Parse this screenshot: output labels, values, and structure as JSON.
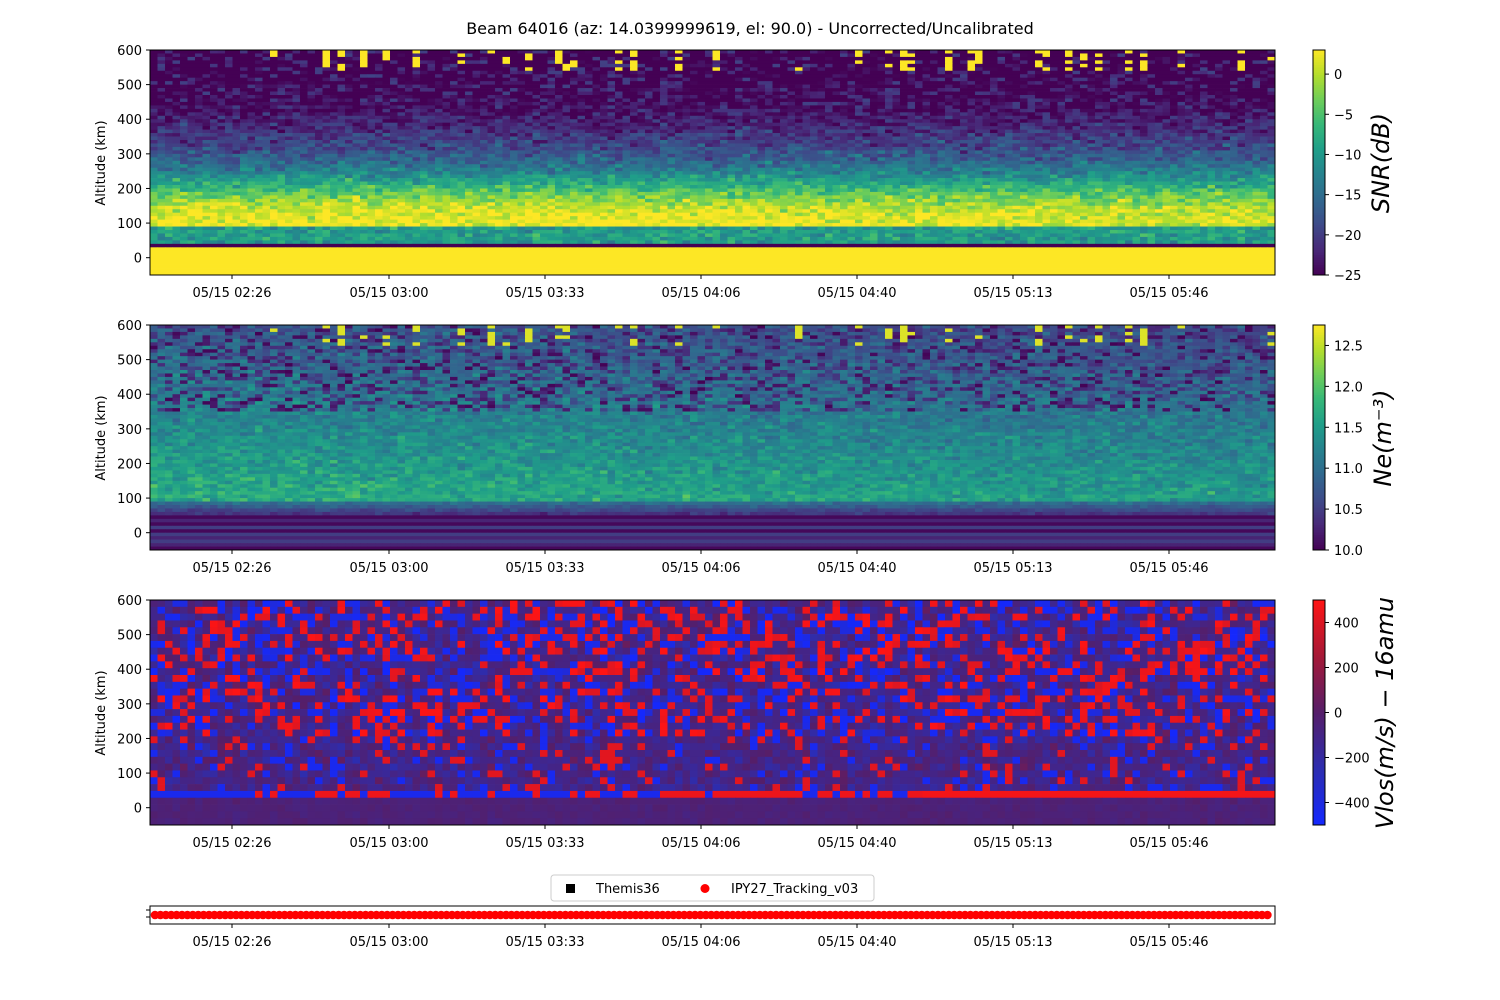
{
  "title": "Beam 64016 (az: 14.0399999619, el: 90.0) - Uncorrected/Uncalibrated",
  "chart_data": [
    {
      "type": "heatmap",
      "name": "snr",
      "ylabel": "Altitude (km)",
      "ylim": [
        -50,
        600
      ],
      "yticks": [
        "0",
        "100",
        "200",
        "300",
        "400",
        "500",
        "600"
      ],
      "xtick_labels": [
        "05/15 02:26",
        "05/15 03:00",
        "05/15 03:33",
        "05/15 04:06",
        "05/15 04:40",
        "05/15 05:13",
        "05/15 05:46"
      ],
      "colorbar": {
        "label": "SNR(dB)",
        "range": [
          -25,
          3
        ],
        "ticks": [
          "0",
          "−5",
          "−10",
          "−15",
          "−20",
          "−25"
        ],
        "colormap": "viridis"
      }
    },
    {
      "type": "heatmap",
      "name": "ne",
      "ylabel": "Altitude (km)",
      "ylim": [
        -50,
        600
      ],
      "yticks": [
        "0",
        "100",
        "200",
        "300",
        "400",
        "500",
        "600"
      ],
      "xtick_labels": [
        "05/15 02:26",
        "05/15 03:00",
        "05/15 03:33",
        "05/15 04:06",
        "05/15 04:40",
        "05/15 05:13",
        "05/15 05:46"
      ],
      "colorbar": {
        "label": "Ne(m⁻³)",
        "range": [
          10.0,
          12.75
        ],
        "ticks": [
          "12.5",
          "12.0",
          "11.5",
          "11.0",
          "10.5",
          "10.0"
        ],
        "colormap": "viridis"
      }
    },
    {
      "type": "heatmap",
      "name": "vlos",
      "ylabel": "Altitude (km)",
      "ylim": [
        -50,
        600
      ],
      "yticks": [
        "0",
        "100",
        "200",
        "300",
        "400",
        "500",
        "600"
      ],
      "xtick_labels": [
        "05/15 02:26",
        "05/15 03:00",
        "05/15 03:33",
        "05/15 04:06",
        "05/15 04:40",
        "05/15 05:13",
        "05/15 05:46"
      ],
      "colorbar": {
        "label": "Vlos(m/s) − 16amu",
        "range": [
          -500,
          500
        ],
        "ticks": [
          "400",
          "200",
          "0",
          "−200",
          "−400"
        ],
        "colormap": "bwr-dark"
      }
    },
    {
      "type": "scatter",
      "name": "modes",
      "xtick_labels": [
        "05/15 02:26",
        "05/15 03:00",
        "05/15 03:33",
        "05/15 04:06",
        "05/15 04:40",
        "05/15 05:13",
        "05/15 05:46"
      ],
      "legend": [
        {
          "label": "Themis36",
          "marker": "square",
          "color": "#000000"
        },
        {
          "label": "IPY27_Tracking_v03",
          "marker": "circle",
          "color": "#ff0000"
        }
      ],
      "legend_placement": "upper-center"
    }
  ]
}
